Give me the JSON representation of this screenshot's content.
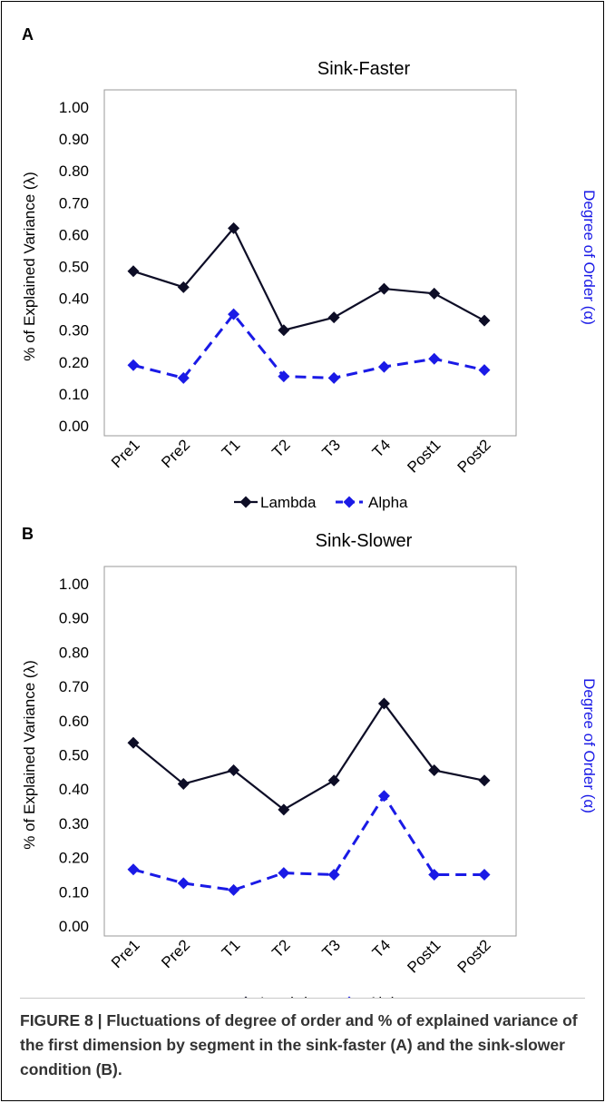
{
  "figure": {
    "caption": "FIGURE 8 | Fluctuations of degree of order and % of explained variance of the first dimension by segment in the sink-faster (A) and the sink-slower condition (B)."
  },
  "chart_data": [
    {
      "panel_label": "A",
      "type": "line",
      "title": "Sink-Faster",
      "ylabel": "% of Explained Variance (λ)",
      "ylabel_right": "Degree of Order (α)",
      "xlabel": "",
      "ylim": [
        0,
        1
      ],
      "y_ticks": [
        "0.00",
        "0.10",
        "0.20",
        "0.30",
        "0.40",
        "0.50",
        "0.60",
        "0.70",
        "0.80",
        "0.90",
        "1.00"
      ],
      "categories": [
        "Pre1",
        "Pre2",
        "T1",
        "T2",
        "T3",
        "T4",
        "Post1",
        "Post2"
      ],
      "grid": false,
      "legend_position": "bottom",
      "series": [
        {
          "name": "Lambda",
          "color": "#0d0d26",
          "line_style": "solid",
          "values": [
            0.485,
            0.435,
            0.62,
            0.3,
            0.34,
            0.43,
            0.415,
            0.33
          ]
        },
        {
          "name": "Alpha",
          "color": "#1a1ae6",
          "line_style": "dashed",
          "values": [
            0.19,
            0.15,
            0.35,
            0.155,
            0.15,
            0.185,
            0.21,
            0.175
          ]
        }
      ]
    },
    {
      "panel_label": "B",
      "type": "line",
      "title": "Sink-Slower",
      "ylabel": "% of Explained Variance (λ)",
      "ylabel_right": "Degree of Order (α)",
      "xlabel": "",
      "ylim": [
        0,
        1
      ],
      "y_ticks": [
        "0.00",
        "0.10",
        "0.20",
        "0.30",
        "0.40",
        "0.50",
        "0.60",
        "0.70",
        "0.80",
        "0.90",
        "1.00"
      ],
      "categories": [
        "Pre1",
        "Pre2",
        "T1",
        "T2",
        "T3",
        "T4",
        "Post1",
        "Post2"
      ],
      "grid": false,
      "legend_position": "bottom",
      "series": [
        {
          "name": "Lambda",
          "color": "#0d0d26",
          "line_style": "solid",
          "values": [
            0.535,
            0.415,
            0.455,
            0.34,
            0.425,
            0.65,
            0.455,
            0.425
          ]
        },
        {
          "name": "Alpha",
          "color": "#1a1ae6",
          "line_style": "dashed",
          "values": [
            0.165,
            0.125,
            0.105,
            0.155,
            0.15,
            0.38,
            0.15,
            0.15
          ]
        }
      ]
    }
  ]
}
